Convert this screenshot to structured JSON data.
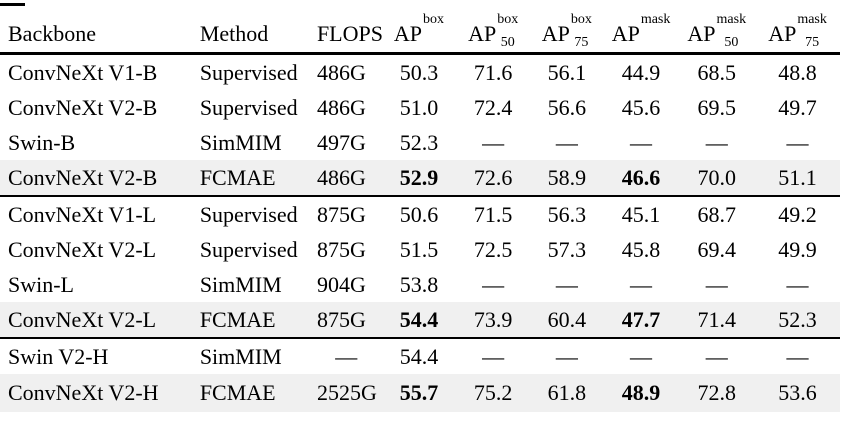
{
  "table": {
    "columns": [
      {
        "key": "backbone",
        "label": "Backbone"
      },
      {
        "key": "method",
        "label": "Method"
      },
      {
        "key": "flops",
        "label": "FLOPS"
      },
      {
        "key": "ap-box",
        "base": "AP",
        "sup": "box",
        "sub": ""
      },
      {
        "key": "ap50-box",
        "base": "AP",
        "sup": "box",
        "sub": "50"
      },
      {
        "key": "ap75-box",
        "base": "AP",
        "sup": "box",
        "sub": "75"
      },
      {
        "key": "ap-mask",
        "base": "AP",
        "sup": "mask",
        "sub": ""
      },
      {
        "key": "ap50-mask",
        "base": "AP",
        "sup": "mask",
        "sub": "50"
      },
      {
        "key": "ap75-mask",
        "base": "AP",
        "sup": "mask",
        "sub": "75"
      }
    ],
    "rows": [
      {
        "cells": [
          "ConvNeXt V1-B",
          "Supervised",
          "486G",
          "50.3",
          "71.6",
          "56.1",
          "44.9",
          "68.5",
          "48.8"
        ],
        "highlight": false,
        "bold": [],
        "group_start": false
      },
      {
        "cells": [
          "ConvNeXt V2-B",
          "Supervised",
          "486G",
          "51.0",
          "72.4",
          "56.6",
          "45.6",
          "69.5",
          "49.7"
        ],
        "highlight": false,
        "bold": [],
        "group_start": false
      },
      {
        "cells": [
          "Swin-B",
          "SimMIM",
          "497G",
          "52.3",
          "—",
          "—",
          "—",
          "—",
          "—"
        ],
        "highlight": false,
        "bold": [],
        "group_start": false
      },
      {
        "cells": [
          "ConvNeXt V2-B",
          "FCMAE",
          "486G",
          "52.9",
          "72.6",
          "58.9",
          "46.6",
          "70.0",
          "51.1"
        ],
        "highlight": true,
        "bold": [
          3,
          6
        ],
        "group_start": false
      },
      {
        "cells": [
          "ConvNeXt V1-L",
          "Supervised",
          "875G",
          "50.6",
          "71.5",
          "56.3",
          "45.1",
          "68.7",
          "49.2"
        ],
        "highlight": false,
        "bold": [],
        "group_start": true
      },
      {
        "cells": [
          "ConvNeXt V2-L",
          "Supervised",
          "875G",
          "51.5",
          "72.5",
          "57.3",
          "45.8",
          "69.4",
          "49.9"
        ],
        "highlight": false,
        "bold": [],
        "group_start": false
      },
      {
        "cells": [
          "Swin-L",
          "SimMIM",
          "904G",
          "53.8",
          "—",
          "—",
          "—",
          "—",
          "—"
        ],
        "highlight": false,
        "bold": [],
        "group_start": false
      },
      {
        "cells": [
          "ConvNeXt V2-L",
          "FCMAE",
          "875G",
          "54.4",
          "73.9",
          "60.4",
          "47.7",
          "71.4",
          "52.3"
        ],
        "highlight": true,
        "bold": [
          3,
          6
        ],
        "group_start": false
      },
      {
        "cells": [
          "Swin V2-H",
          "SimMIM",
          "—",
          "54.4",
          "—",
          "—",
          "—",
          "—",
          "—"
        ],
        "highlight": false,
        "bold": [],
        "group_start": true
      },
      {
        "cells": [
          "ConvNeXt V2-H",
          "FCMAE",
          "2525G",
          "55.7",
          "75.2",
          "61.8",
          "48.9",
          "72.8",
          "53.6"
        ],
        "highlight": true,
        "bold": [
          3,
          6
        ],
        "group_start": false
      }
    ],
    "highlight_color": "#f0f0f0",
    "rule_color": "#000000",
    "dash": "—"
  }
}
